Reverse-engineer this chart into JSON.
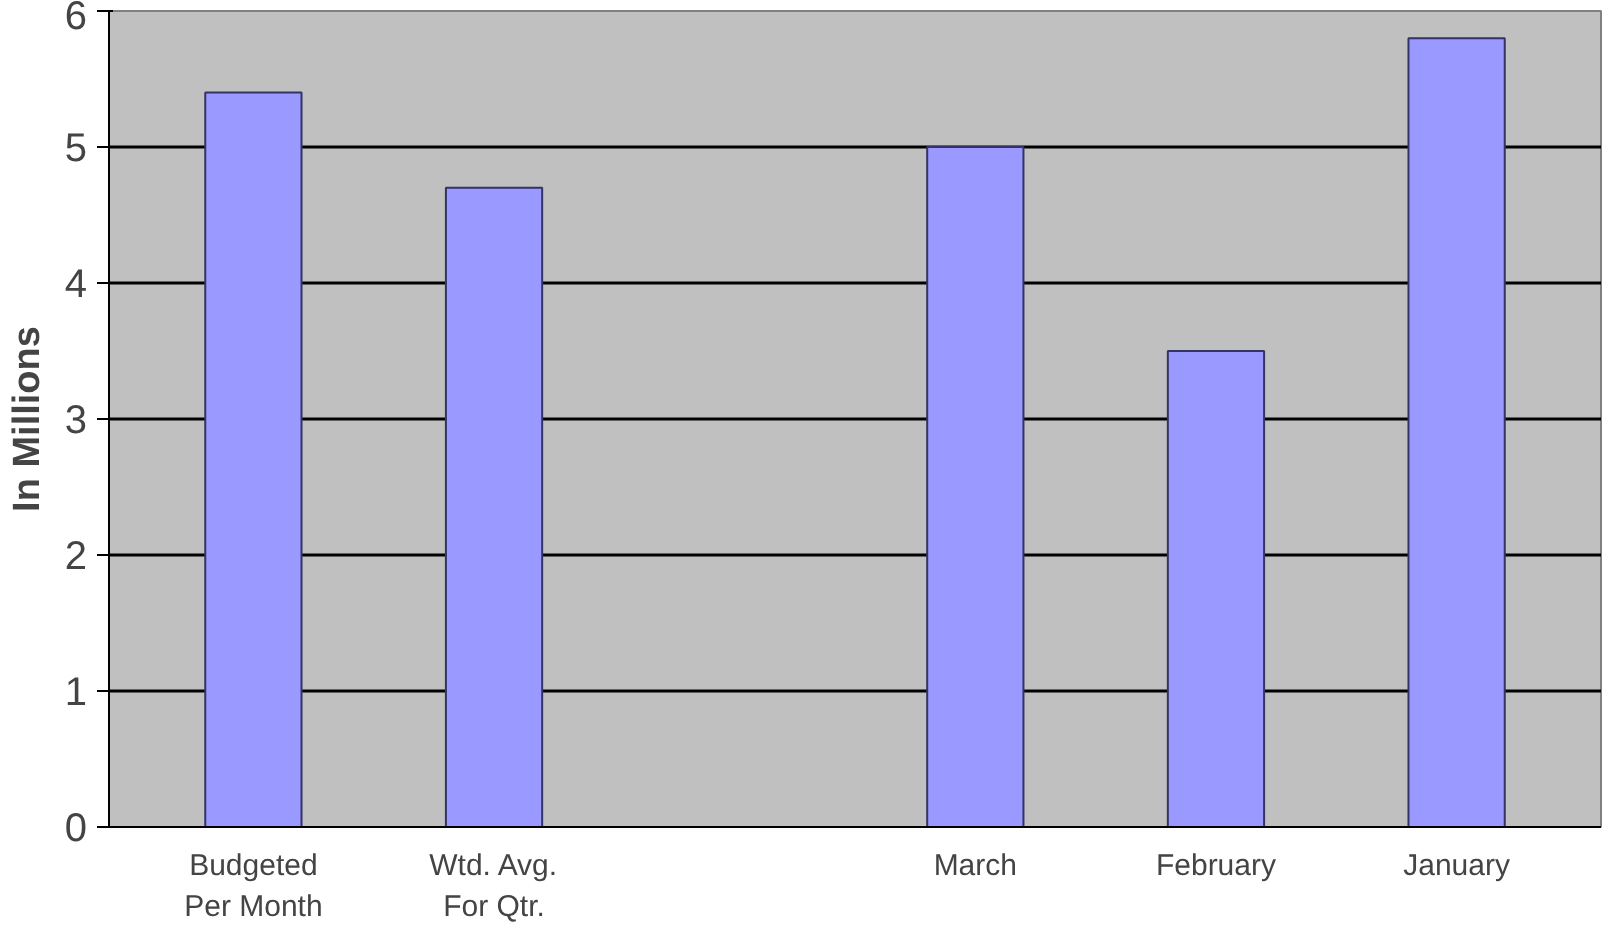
{
  "chart_data": {
    "type": "bar",
    "ylabel": "In Millions",
    "categories": [
      "Budgeted\nPer Month",
      "Wtd. Avg.\nFor Qtr.",
      null,
      "March",
      "February",
      "January"
    ],
    "values": [
      5.4,
      4.7,
      null,
      5.0,
      3.5,
      5.8
    ],
    "color": "#9999ff",
    "ylim": [
      0,
      6
    ],
    "yticks": [
      0,
      1,
      2,
      3,
      4,
      5,
      6
    ],
    "grid": "y"
  }
}
